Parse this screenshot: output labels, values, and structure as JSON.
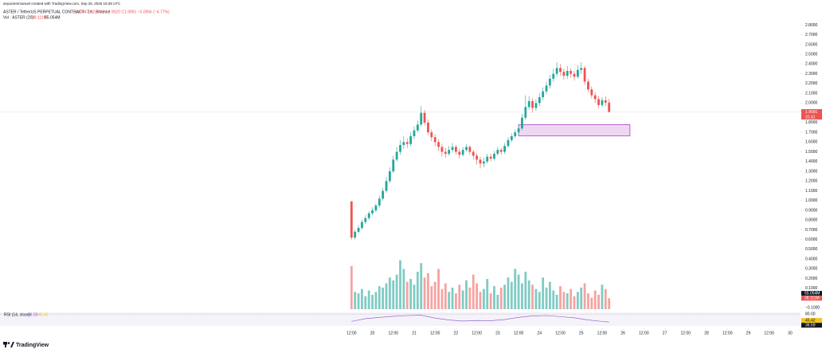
{
  "header": {
    "credit": "anyaciemmanuel created with TradingView.com, Sep 25, 2025 15:28 UTC"
  },
  "footer": {
    "brand": "TradingView"
  },
  "chart_data": [
    {
      "type": "candlestick",
      "title": "ASTER / TetherUS PERPETUAL CONTRACT · 1h · Binance",
      "quote": "O2.0047 H2.0440 L1.9020 C1.9091 −0.0956 (−4.77%)",
      "countdown": "31:41",
      "colors": {
        "up": "#26a69a",
        "down": "#ef5350"
      },
      "x": [
        12,
        14,
        16,
        18,
        20,
        22,
        24,
        26,
        28,
        30,
        32,
        34,
        36,
        38,
        40,
        42,
        44,
        46,
        48,
        50,
        52,
        54,
        56,
        58,
        60,
        62,
        64,
        66,
        68,
        70,
        72,
        74,
        76,
        78,
        80,
        82,
        84,
        86,
        88,
        90,
        92,
        94,
        96,
        98,
        100,
        102,
        104,
        106,
        108,
        110,
        112,
        114,
        116,
        118,
        120,
        122,
        124,
        126,
        128,
        130,
        132,
        134,
        136,
        138,
        140,
        142,
        144,
        146,
        148,
        150,
        152,
        154,
        156,
        158,
        160
      ],
      "open": [
        0.99,
        0.62,
        0.68,
        0.72,
        0.78,
        0.82,
        0.87,
        0.9,
        0.95,
        1.02,
        1.1,
        1.2,
        1.3,
        1.42,
        1.5,
        1.57,
        1.6,
        1.58,
        1.66,
        1.72,
        1.78,
        1.9,
        1.8,
        1.7,
        1.65,
        1.6,
        1.55,
        1.5,
        1.48,
        1.52,
        1.55,
        1.5,
        1.47,
        1.52,
        1.55,
        1.5,
        1.46,
        1.42,
        1.38,
        1.4,
        1.45,
        1.43,
        1.48,
        1.52,
        1.5,
        1.56,
        1.62,
        1.66,
        1.7,
        1.74,
        1.85,
        1.96,
        2.02,
        1.95,
        2.0,
        2.06,
        2.12,
        2.18,
        2.25,
        2.3,
        2.36,
        2.32,
        2.28,
        2.33,
        2.3,
        2.27,
        2.34,
        2.36,
        2.22,
        2.14,
        2.08,
        2.04,
        1.98,
        2.03,
        2.0047
      ],
      "high": [
        1.0,
        0.7,
        0.75,
        0.8,
        0.85,
        0.89,
        0.93,
        0.97,
        1.05,
        1.13,
        1.24,
        1.34,
        1.46,
        1.55,
        1.62,
        1.66,
        1.64,
        1.7,
        1.76,
        1.82,
        1.97,
        1.93,
        1.83,
        1.73,
        1.68,
        1.63,
        1.58,
        1.54,
        1.56,
        1.59,
        1.57,
        1.53,
        1.55,
        1.58,
        1.57,
        1.52,
        1.49,
        1.45,
        1.44,
        1.48,
        1.48,
        1.51,
        1.55,
        1.54,
        1.59,
        1.65,
        1.69,
        1.73,
        1.78,
        1.89,
        2.08,
        2.07,
        2.05,
        2.04,
        2.1,
        2.16,
        2.22,
        2.29,
        2.35,
        2.42,
        2.4,
        2.35,
        2.38,
        2.36,
        2.33,
        2.39,
        2.42,
        2.38,
        2.25,
        2.17,
        2.11,
        2.07,
        2.06,
        2.07,
        2.044
      ],
      "low": [
        0.6,
        0.6,
        0.66,
        0.7,
        0.76,
        0.8,
        0.85,
        0.88,
        0.93,
        1.0,
        1.08,
        1.18,
        1.28,
        1.4,
        1.47,
        1.53,
        1.54,
        1.56,
        1.63,
        1.7,
        1.76,
        1.77,
        1.67,
        1.61,
        1.56,
        1.51,
        1.45,
        1.44,
        1.46,
        1.49,
        1.47,
        1.43,
        1.45,
        1.5,
        1.47,
        1.42,
        1.37,
        1.33,
        1.34,
        1.38,
        1.4,
        1.41,
        1.46,
        1.47,
        1.48,
        1.54,
        1.6,
        1.64,
        1.67,
        1.72,
        1.83,
        1.93,
        1.9,
        1.92,
        1.97,
        2.03,
        2.09,
        2.15,
        2.22,
        2.27,
        2.28,
        2.24,
        2.25,
        2.26,
        2.23,
        2.25,
        2.3,
        2.19,
        2.11,
        2.05,
        2.0,
        1.95,
        1.96,
        1.97,
        1.902
      ],
      "close": [
        0.62,
        0.68,
        0.72,
        0.78,
        0.82,
        0.87,
        0.9,
        0.95,
        1.02,
        1.1,
        1.2,
        1.3,
        1.42,
        1.5,
        1.57,
        1.6,
        1.58,
        1.66,
        1.72,
        1.78,
        1.9,
        1.8,
        1.7,
        1.65,
        1.6,
        1.55,
        1.5,
        1.48,
        1.52,
        1.55,
        1.5,
        1.47,
        1.52,
        1.55,
        1.5,
        1.46,
        1.42,
        1.38,
        1.4,
        1.45,
        1.43,
        1.48,
        1.52,
        1.5,
        1.56,
        1.62,
        1.66,
        1.7,
        1.74,
        1.85,
        1.96,
        2.02,
        1.95,
        2.0,
        2.06,
        2.12,
        2.18,
        2.25,
        2.3,
        2.36,
        2.32,
        2.28,
        2.33,
        2.3,
        2.27,
        2.34,
        2.36,
        2.22,
        2.14,
        2.08,
        2.04,
        1.98,
        2.03,
        2.0047,
        1.9091
      ],
      "xlim": [
        -190,
        270
      ],
      "xticks": [
        {
          "value": 12,
          "label": "12:00"
        },
        {
          "value": 24,
          "label": "20"
        },
        {
          "value": 36,
          "label": "12:00"
        },
        {
          "value": 48,
          "label": "21"
        },
        {
          "value": 60,
          "label": "12:00"
        },
        {
          "value": 72,
          "label": "22"
        },
        {
          "value": 84,
          "label": "12:00"
        },
        {
          "value": 96,
          "label": "23"
        },
        {
          "value": 108,
          "label": "12:00"
        },
        {
          "value": 120,
          "label": "24"
        },
        {
          "value": 132,
          "label": "12:00"
        },
        {
          "value": 144,
          "label": "25"
        },
        {
          "value": 156,
          "label": "12:00"
        },
        {
          "value": 168,
          "label": "26"
        },
        {
          "value": 180,
          "label": "12:00"
        },
        {
          "value": 192,
          "label": "27"
        },
        {
          "value": 204,
          "label": "12:00"
        },
        {
          "value": 216,
          "label": "28"
        },
        {
          "value": 228,
          "label": "12:00"
        },
        {
          "value": 240,
          "label": "29"
        },
        {
          "value": 252,
          "label": "12:00"
        },
        {
          "value": 264,
          "label": "30"
        }
      ],
      "ylim": [
        -0.13,
        3.0
      ],
      "yticks": [
        {
          "value": 2.8,
          "label": "2.8000"
        },
        {
          "value": 2.7,
          "label": "2.7000"
        },
        {
          "value": 2.6,
          "label": "2.6000"
        },
        {
          "value": 2.5,
          "label": "2.5000"
        },
        {
          "value": 2.4,
          "label": "2.4000"
        },
        {
          "value": 2.3,
          "label": "2.3000"
        },
        {
          "value": 2.2,
          "label": "2.2000"
        },
        {
          "value": 2.1,
          "label": "2.1000"
        },
        {
          "value": 2.0,
          "label": "2.0000"
        },
        {
          "value": 1.8,
          "label": "1.8000"
        },
        {
          "value": 1.7,
          "label": "1.7000"
        },
        {
          "value": 1.6,
          "label": "1.6000"
        },
        {
          "value": 1.5,
          "label": "1.5000"
        },
        {
          "value": 1.4,
          "label": "1.4000"
        },
        {
          "value": 1.3,
          "label": "1.3000"
        },
        {
          "value": 1.2,
          "label": "1.2000"
        },
        {
          "value": 1.1,
          "label": "1.1000"
        },
        {
          "value": 1.0,
          "label": "1.0000"
        },
        {
          "value": 0.9,
          "label": "0.9000"
        },
        {
          "value": 0.8,
          "label": "0.8000"
        },
        {
          "value": 0.7,
          "label": "0.7000"
        },
        {
          "value": 0.6,
          "label": "0.6000"
        },
        {
          "value": 0.5,
          "label": "0.5000"
        },
        {
          "value": 0.4,
          "label": "0.4000"
        },
        {
          "value": 0.3,
          "label": "0.3000"
        },
        {
          "value": 0.2,
          "label": "0.2000"
        },
        {
          "value": 0.1,
          "label": "0.1000"
        },
        {
          "value": -0.1,
          "label": "−0.1000"
        }
      ],
      "zone": {
        "x": [
          108,
          172
        ],
        "y": [
          1.664,
          1.779
        ],
        "color": "#e8c6f0",
        "border": "#ab47bc"
      }
    },
    {
      "type": "bar",
      "title": "Vol · ASTER (20)",
      "legend_values": [
        "38.111M",
        "55.054M"
      ],
      "values": [
        150,
        60,
        55,
        70,
        45,
        65,
        50,
        60,
        80,
        75,
        90,
        110,
        100,
        120,
        170,
        140,
        95,
        105,
        85,
        130,
        160,
        110,
        125,
        80,
        95,
        140,
        70,
        90,
        60,
        75,
        55,
        85,
        65,
        100,
        75,
        120,
        90,
        60,
        70,
        105,
        55,
        80,
        50,
        75,
        85,
        110,
        95,
        140,
        120,
        90,
        130,
        100,
        85,
        70,
        60,
        110,
        75,
        95,
        65,
        50,
        80,
        60,
        55,
        70,
        45,
        60,
        75,
        90,
        55,
        40,
        65,
        50,
        85,
        70,
        38.111
      ],
      "ma": 55.054,
      "colors": {
        "up": "#7fcbc3",
        "down": "#f5a3a1"
      },
      "ylim": [
        0,
        180
      ]
    },
    {
      "type": "line",
      "title": "RSI (14, close)",
      "legend_values": [
        "36.59",
        "45.42"
      ],
      "x": [
        12,
        20,
        28,
        36,
        44,
        52,
        60,
        68,
        76,
        84,
        92,
        100,
        108,
        116,
        124,
        132,
        140,
        148,
        156,
        160
      ],
      "values": [
        40,
        55,
        62,
        68,
        72,
        74,
        58,
        48,
        42,
        45,
        44,
        50,
        62,
        70,
        72,
        66,
        60,
        48,
        40,
        36.59
      ],
      "ma": 45.42,
      "color": "#7e57c2",
      "ma_color": "#f5c518",
      "ylim": [
        20,
        85
      ],
      "yticks": [
        {
          "value": 80,
          "label": "80.00"
        }
      ]
    }
  ]
}
